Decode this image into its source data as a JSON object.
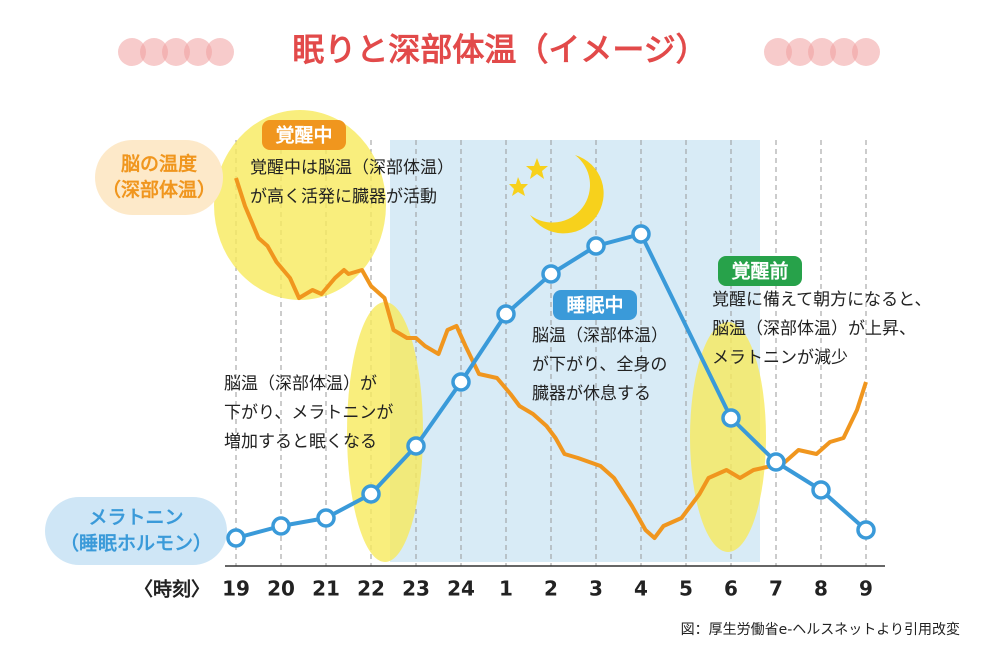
{
  "chart_data": {
    "type": "line",
    "title": "眠りと深部体温（イメージ）",
    "x_axis_label": "〈時刻〉",
    "xlim": [
      0,
      14
    ],
    "xticks": [
      {
        "value": 0,
        "label": "19"
      },
      {
        "value": 1,
        "label": "20"
      },
      {
        "value": 2,
        "label": "21"
      },
      {
        "value": 3,
        "label": "22"
      },
      {
        "value": 4,
        "label": "23"
      },
      {
        "value": 5,
        "label": "24"
      },
      {
        "value": 6,
        "label": "1"
      },
      {
        "value": 7,
        "label": "2"
      },
      {
        "value": 8,
        "label": "3"
      },
      {
        "value": 9,
        "label": "4"
      },
      {
        "value": 10,
        "label": "5"
      },
      {
        "value": 11,
        "label": "6"
      },
      {
        "value": 12,
        "label": "7"
      },
      {
        "value": 13,
        "label": "8"
      },
      {
        "value": 14,
        "label": "9"
      }
    ],
    "ylim": [
      0,
      100
    ],
    "grid": true,
    "series": [
      {
        "name_lines": [
          "脳の温度",
          "（深部体温）"
        ],
        "color": "#f0961e",
        "markers": false,
        "x": [
          0,
          0.2,
          0.5,
          0.7,
          0.9,
          1.2,
          1.4,
          1.7,
          1.9,
          2.2,
          2.4,
          2.5,
          2.8,
          3.0,
          3.3,
          3.5,
          3.8,
          4.0,
          4.2,
          4.5,
          4.7,
          4.9,
          5.1,
          5.4,
          5.8,
          6.1,
          6.3,
          6.6,
          6.9,
          7.1,
          7.3,
          7.6,
          8.1,
          8.4,
          8.8,
          9.1,
          9.3,
          9.5,
          9.9,
          10.1,
          10.3,
          10.5,
          10.9,
          11.2,
          11.5,
          11.9,
          12.2,
          12.5,
          12.9,
          13.2,
          13.5,
          13.8,
          14
        ],
        "values": [
          98,
          91,
          83,
          81,
          77,
          73,
          68,
          70,
          69,
          73,
          75,
          74,
          75,
          71,
          68,
          60,
          58,
          58,
          56,
          54,
          60,
          61,
          56,
          49,
          48,
          44,
          41,
          39,
          36,
          33,
          29,
          28,
          26,
          23,
          16,
          10,
          8,
          11,
          13,
          16,
          19,
          23,
          25,
          23,
          25,
          26,
          27,
          30,
          29,
          32,
          33,
          40,
          47
        ]
      },
      {
        "name_lines": [
          "メラトニン",
          "（睡眠ホルモン）"
        ],
        "color": "#3a9ad9",
        "markers": true,
        "x": [
          0,
          1,
          2,
          3,
          4,
          5,
          6,
          7,
          8,
          9,
          11,
          12,
          13,
          14
        ],
        "values": [
          8,
          11,
          13,
          19,
          31,
          47,
          64,
          74,
          81,
          84,
          38,
          27,
          20,
          10
        ]
      }
    ],
    "annotations": [
      {
        "badge": "覚醒中",
        "badge_color": "#f0961e",
        "lines": [
          "覚醒中は脳温（深部体温）",
          "が高く活発に臓器が活動"
        ]
      },
      {
        "lines": [
          "脳温（深部体温）が",
          "下がり、メラトニンが",
          "増加すると眠くなる"
        ]
      },
      {
        "badge": "睡眠中",
        "badge_color": "#3a9ad9",
        "lines": [
          "脳温（深部体温）",
          "が下がり、全身の",
          "臓器が休息する"
        ]
      },
      {
        "badge": "覚醒前",
        "badge_color": "#27a24a",
        "lines": [
          "覚醒に備えて朝方になると、",
          "脳温（深部体温）が上昇、",
          "メラトニンが減少"
        ]
      }
    ],
    "source": "図：厚生労働省e-ヘルスネットより引用改変"
  }
}
